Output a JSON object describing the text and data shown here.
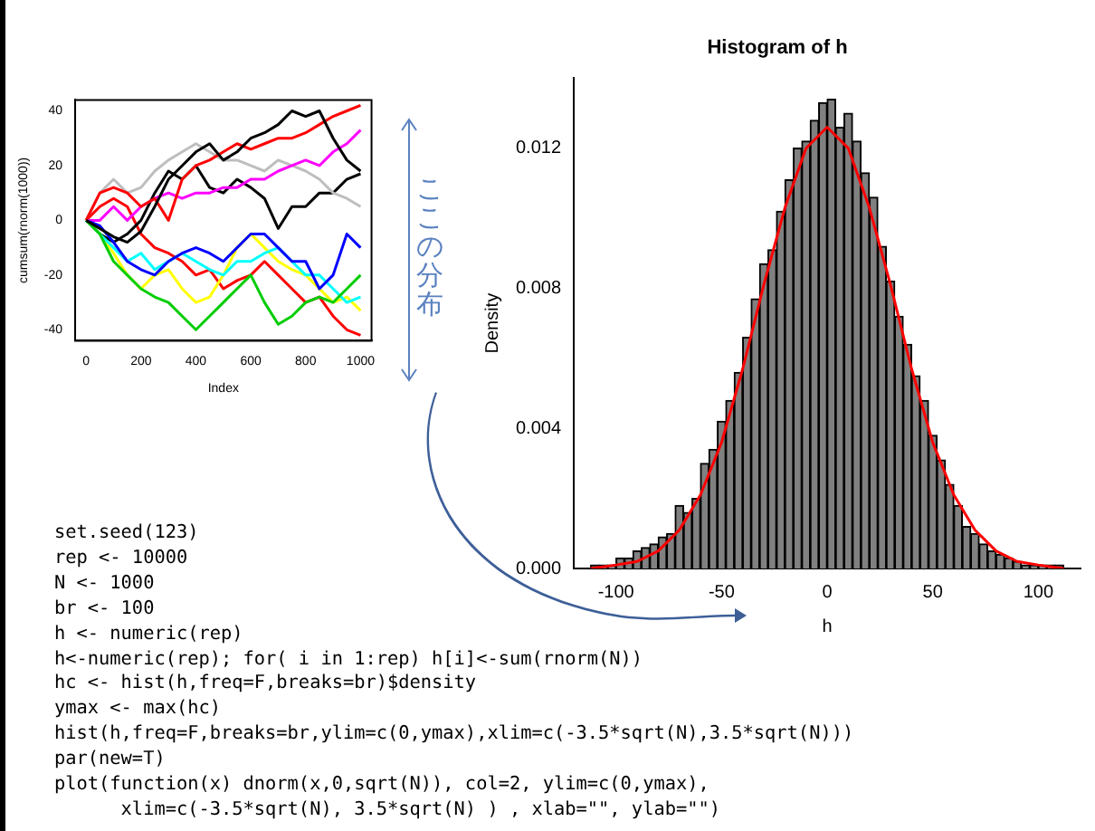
{
  "chart_data": [
    {
      "type": "line",
      "xlabel": "Index",
      "ylabel": "cumsum(rnorm(1000))",
      "x": [
        0,
        50,
        100,
        150,
        200,
        250,
        300,
        350,
        400,
        450,
        500,
        550,
        600,
        650,
        700,
        750,
        800,
        850,
        900,
        950,
        1000
      ],
      "xlim": [
        -40,
        1040
      ],
      "xticks": [
        0,
        200,
        400,
        600,
        800,
        1000
      ],
      "ylim": [
        -44,
        44
      ],
      "yticks": [
        -40,
        -20,
        0,
        20,
        40
      ],
      "grid": false,
      "legend": false,
      "line_style": "solid",
      "marker": "none",
      "series": [
        {
          "color": "#000000",
          "values": [
            0,
            -3,
            -6,
            -8,
            -4,
            5,
            15,
            20,
            25,
            28,
            22,
            25,
            30,
            32,
            35,
            40,
            38,
            40,
            30,
            22,
            18
          ]
        },
        {
          "color": "#ff0000",
          "values": [
            0,
            10,
            12,
            10,
            5,
            8,
            0,
            15,
            20,
            22,
            25,
            28,
            26,
            28,
            30,
            30,
            32,
            35,
            38,
            40,
            42
          ]
        },
        {
          "color": "#00cd00",
          "values": [
            0,
            -5,
            -15,
            -20,
            -25,
            -28,
            -30,
            -35,
            -40,
            -35,
            -30,
            -25,
            -20,
            -30,
            -38,
            -35,
            -30,
            -28,
            -30,
            -25,
            -20
          ]
        },
        {
          "color": "#0000ff",
          "values": [
            0,
            -2,
            -8,
            -15,
            -18,
            -20,
            -15,
            -12,
            -10,
            -12,
            -15,
            -10,
            -5,
            -5,
            -10,
            -15,
            -15,
            -25,
            -20,
            -5,
            -10
          ]
        },
        {
          "color": "#00ffff",
          "values": [
            0,
            -5,
            -10,
            -15,
            -12,
            -18,
            -15,
            -12,
            -15,
            -18,
            -20,
            -15,
            -15,
            -12,
            -10,
            -15,
            -20,
            -20,
            -25,
            -30,
            -28
          ]
        },
        {
          "color": "#ff00ff",
          "values": [
            0,
            0,
            5,
            0,
            5,
            8,
            10,
            8,
            10,
            10,
            12,
            12,
            15,
            15,
            18,
            20,
            22,
            20,
            25,
            28,
            33
          ]
        },
        {
          "color": "#ffff00",
          "values": [
            0,
            -5,
            -12,
            -20,
            -25,
            -20,
            -18,
            -25,
            -30,
            -28,
            -20,
            -10,
            -5,
            -10,
            -15,
            -18,
            -20,
            -25,
            -30,
            -28,
            -33
          ]
        },
        {
          "color": "#bebebe",
          "values": [
            0,
            10,
            15,
            10,
            12,
            18,
            22,
            25,
            28,
            25,
            22,
            22,
            20,
            18,
            22,
            20,
            18,
            15,
            10,
            8,
            5
          ]
        },
        {
          "color": "#000000",
          "values": [
            0,
            -5,
            -8,
            -5,
            0,
            10,
            18,
            15,
            20,
            12,
            10,
            15,
            12,
            8,
            -3,
            5,
            5,
            10,
            10,
            15,
            17
          ]
        },
        {
          "color": "#ff0000",
          "values": [
            0,
            5,
            8,
            5,
            -5,
            -10,
            -12,
            -15,
            -20,
            -18,
            -25,
            -22,
            -20,
            -15,
            -20,
            -25,
            -30,
            -28,
            -35,
            -40,
            -42
          ]
        }
      ],
      "annotations": [
        "ここの分布"
      ]
    },
    {
      "type": "histogram",
      "title": "Histogram of h",
      "xlabel": "h",
      "ylabel": "Density",
      "color": "#808080",
      "grid": false,
      "legend": false,
      "bins": [
        -112,
        -108,
        -104,
        -100,
        -96,
        -92,
        -88,
        -84,
        -80,
        -76,
        -72,
        -68,
        -64,
        -60,
        -56,
        -52,
        -48,
        -44,
        -40,
        -36,
        -32,
        -28,
        -24,
        -20,
        -16,
        -12,
        -8,
        -4,
        0,
        4,
        8,
        12,
        16,
        20,
        24,
        28,
        32,
        36,
        40,
        44,
        48,
        52,
        56,
        60,
        64,
        68,
        72,
        76,
        80,
        84,
        88,
        92,
        96,
        100,
        104,
        108,
        112
      ],
      "values": [
        0.0001,
        0.0001,
        0.0001,
        0.0003,
        0.0003,
        0.0005,
        0.0006,
        0.0007,
        0.0009,
        0.001,
        0.0018,
        0.0016,
        0.002,
        0.003,
        0.0034,
        0.0042,
        0.0048,
        0.0056,
        0.0066,
        0.0077,
        0.0087,
        0.0091,
        0.0102,
        0.0111,
        0.012,
        0.0122,
        0.0128,
        0.0133,
        0.0134,
        0.0126,
        0.013,
        0.0122,
        0.0113,
        0.0106,
        0.0092,
        0.0082,
        0.0072,
        0.0064,
        0.0055,
        0.0048,
        0.0038,
        0.0031,
        0.0024,
        0.0018,
        0.0012,
        0.001,
        0.0007,
        0.0005,
        0.0004,
        0.0003,
        0.0002,
        0.0001,
        0.0001,
        0.0001,
        0.0001,
        0.0001
      ],
      "xlim": [
        -120,
        120
      ],
      "xticks": [
        -100,
        -50,
        0,
        50,
        100
      ],
      "ylim": [
        0,
        0.014
      ],
      "yticks": [
        {
          "value": 0,
          "label": "0.000"
        },
        {
          "value": 0.004,
          "label": "0.004"
        },
        {
          "value": 0.008,
          "label": "0.008"
        },
        {
          "value": 0.012,
          "label": "0.012"
        }
      ],
      "series": [
        {
          "type": "line",
          "color": "#ff0000",
          "x": [
            -112,
            -100,
            -90,
            -80,
            -70,
            -60,
            -50,
            -40,
            -30,
            -20,
            -10,
            0,
            10,
            20,
            30,
            40,
            50,
            60,
            70,
            80,
            90,
            100,
            112
          ],
          "values": [
            0,
            0.0001,
            0.0002,
            0.0005,
            0.0011,
            0.0021,
            0.0036,
            0.0057,
            0.0081,
            0.0103,
            0.012,
            0.0126,
            0.012,
            0.0103,
            0.0081,
            0.0057,
            0.0036,
            0.0021,
            0.0011,
            0.0005,
            0.0002,
            0.0001,
            0
          ]
        }
      ]
    },
    {
      "type": "other",
      "annotations": [
        "set.seed(123)",
        "rep <- 10000",
        "N <- 1000",
        "br <- 100",
        "h <- numeric(rep)",
        "h<-numeric(rep); for( i in 1:rep) h[i]<-sum(rnorm(N))",
        "hc <- hist(h,freq=F,breaks=br)$density",
        "ymax <- max(hc)",
        "hist(h,freq=F,breaks=br,ylim=c(0,ymax),xlim=c(-3.5*sqrt(N),3.5*sqrt(N)))",
        "par(new=T)",
        "plot(function(x) dnorm(x,0,sqrt(N)), col=2, ylim=c(0,ymax),",
        "      xlim=c(-3.5*sqrt(N), 3.5*sqrt(N) ) , xlab=\"\", ylab=\"\")"
      ]
    }
  ]
}
